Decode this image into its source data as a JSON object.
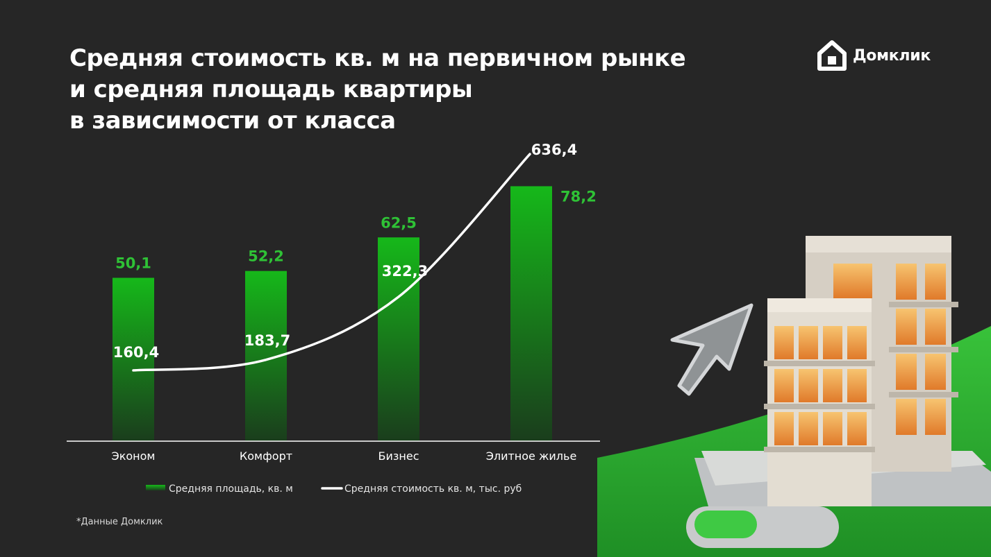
{
  "title_lines": [
    "Средняя стоимость кв. м на первичном рынке",
    "и средняя площадь квартиры",
    "в зависимости от класса"
  ],
  "logo": {
    "text": "Домклик",
    "icon": "domclick-house-logo-icon"
  },
  "footnote": "*Данные Домклик",
  "colors": {
    "background": "#262626",
    "bar_top": "#16b81a",
    "bar_bottom": "#1a3d1c",
    "bar_label": "#2fc236",
    "line": "#ffffff",
    "text": "#ffffff"
  },
  "chart_data": {
    "type": "bar",
    "categories": [
      "Эконом",
      "Комфорт",
      "Бизнес",
      "Элитное жилье"
    ],
    "series": [
      {
        "name": "Средняя площадь, кв. м",
        "type": "bar",
        "values": [
          50.1,
          52.2,
          62.5,
          78.2
        ],
        "labels": [
          "50,1",
          "52,2",
          "62,5",
          "78,2"
        ]
      },
      {
        "name": "Средняя стоимость кв. м, тыс. руб",
        "type": "line",
        "values": [
          160.4,
          183.7,
          322.3,
          636.4
        ],
        "labels": [
          "160,4",
          "183,7",
          "322,3",
          "636,4"
        ]
      }
    ],
    "legend_position": "bottom",
    "grid": false
  }
}
